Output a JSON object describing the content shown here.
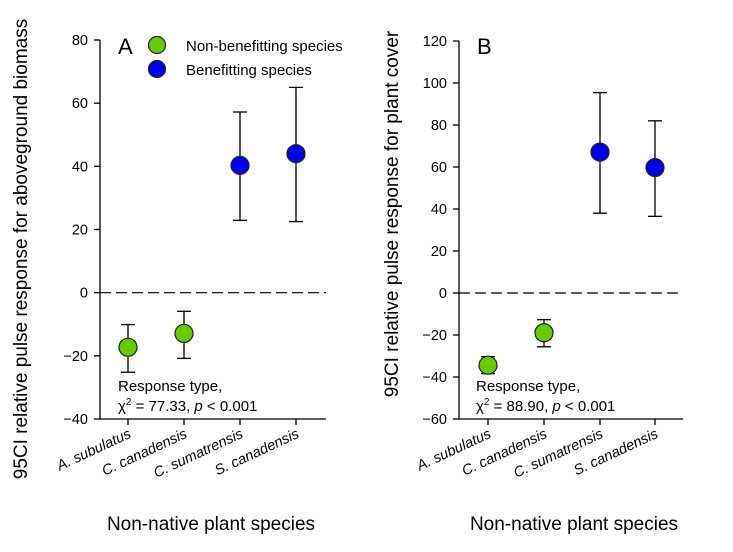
{
  "chart_data": [
    {
      "type": "scatter",
      "panel": "A",
      "title": "",
      "xlabel": "Non-native plant species",
      "ylabel": "95CI relative pulse response for aboveground biomass",
      "categories": [
        "A. subulatus",
        "C. canadensis",
        "C. sumatrensis",
        "S. canadensis"
      ],
      "ylim": [
        -40,
        80
      ],
      "yticks": [
        -40,
        -20,
        0,
        20,
        40,
        60,
        80
      ],
      "ytick_labels": [
        "−40",
        "−20",
        "0",
        "20",
        "40",
        "60",
        "80"
      ],
      "reference_line": 0,
      "grid": false,
      "legend_position": "top-left",
      "series": [
        {
          "name": "Non-benefitting species",
          "color": "#66cc00",
          "points": [
            {
              "category": "A. subulatus",
              "value": -17.3,
              "ci_low": -25.2,
              "ci_high": -10.1
            },
            {
              "category": "C. canadensis",
              "value": -12.9,
              "ci_low": -20.8,
              "ci_high": -5.9
            }
          ]
        },
        {
          "name": "Benefitting species",
          "color": "#0000ee",
          "points": [
            {
              "category": "C. sumatrensis",
              "value": 40.3,
              "ci_low": 22.9,
              "ci_high": 57.2
            },
            {
              "category": "S. canadensis",
              "value": 44.0,
              "ci_low": 22.5,
              "ci_high": 65.0
            }
          ]
        }
      ],
      "annotation": {
        "line1": "Response type,",
        "chi_symbol": "χ",
        "chi_sup": "2",
        "chi_value": " = 77.33, ",
        "p_symbol": "p",
        "p_value": " < 0.001"
      }
    },
    {
      "type": "scatter",
      "panel": "B",
      "title": "",
      "xlabel": "Non-native plant species",
      "ylabel": "95CI relative pulse response for plant cover",
      "categories": [
        "A. subulatus",
        "C. canadensis",
        "C. sumatrensis",
        "S. canadensis"
      ],
      "ylim": [
        -60,
        120
      ],
      "yticks": [
        -60,
        -40,
        -20,
        0,
        20,
        40,
        60,
        80,
        100,
        120
      ],
      "ytick_labels": [
        "−60",
        "−40",
        "−20",
        "0",
        "20",
        "40",
        "60",
        "80",
        "100",
        "120"
      ],
      "reference_line": 0,
      "grid": false,
      "legend_position": "none",
      "series": [
        {
          "name": "Non-benefitting species",
          "color": "#66cc00",
          "points": [
            {
              "category": "A. subulatus",
              "value": -34.4,
              "ci_low": -38.4,
              "ci_high": -30.3
            },
            {
              "category": "C. canadensis",
              "value": -18.9,
              "ci_low": -25.6,
              "ci_high": -12.7
            }
          ]
        },
        {
          "name": "Benefitting species",
          "color": "#0000ee",
          "points": [
            {
              "category": "C. sumatrensis",
              "value": 67.1,
              "ci_low": 38.0,
              "ci_high": 95.4
            },
            {
              "category": "S. canadensis",
              "value": 59.7,
              "ci_low": 36.5,
              "ci_high": 82.0
            }
          ]
        }
      ],
      "annotation": {
        "line1": "Response type,",
        "chi_symbol": "χ",
        "chi_sup": "2",
        "chi_value": " = 88.90, ",
        "p_symbol": "p",
        "p_value": " < 0.001"
      }
    }
  ],
  "panels": {
    "A": {
      "letter": "A"
    },
    "B": {
      "letter": "B"
    }
  },
  "legend": {
    "items": [
      {
        "label": "Non-benefitting species",
        "color": "#66cc00"
      },
      {
        "label": "Benefitting species",
        "color": "#0000ee"
      }
    ]
  }
}
